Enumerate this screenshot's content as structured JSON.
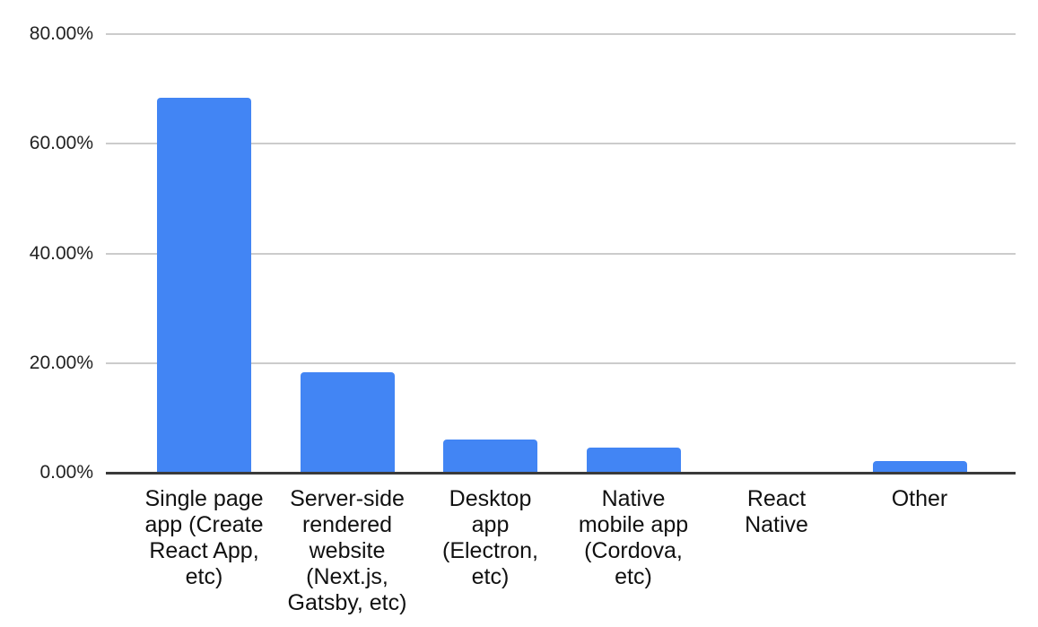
{
  "chart_data": {
    "type": "bar",
    "title": "",
    "xlabel": "",
    "ylabel": "",
    "categories": [
      "Single page app (Create React App, etc)",
      "Server-side rendered website (Next.js, Gatsby, etc)",
      "Desktop app (Electron, etc)",
      "Native mobile app (Cordova, etc)",
      "React Native",
      "Other"
    ],
    "values": [
      68.4,
      18.3,
      6.1,
      4.5,
      0,
      2.2
    ],
    "value_unit": "%",
    "ylim": [
      0,
      80
    ],
    "y_tick_values": [
      0,
      20,
      40,
      60,
      80
    ],
    "y_tick_labels": [
      "0.00%",
      "20.00%",
      "40.00%",
      "60.00%",
      "80.00%"
    ],
    "grid": true,
    "legend": false,
    "colors": {
      "bar": "#4285f4",
      "gridline": "#cccccc",
      "axis_line": "#3a3a3a",
      "y_label_text": "#222222",
      "x_label_text": "#111111",
      "background": "#ffffff"
    }
  }
}
